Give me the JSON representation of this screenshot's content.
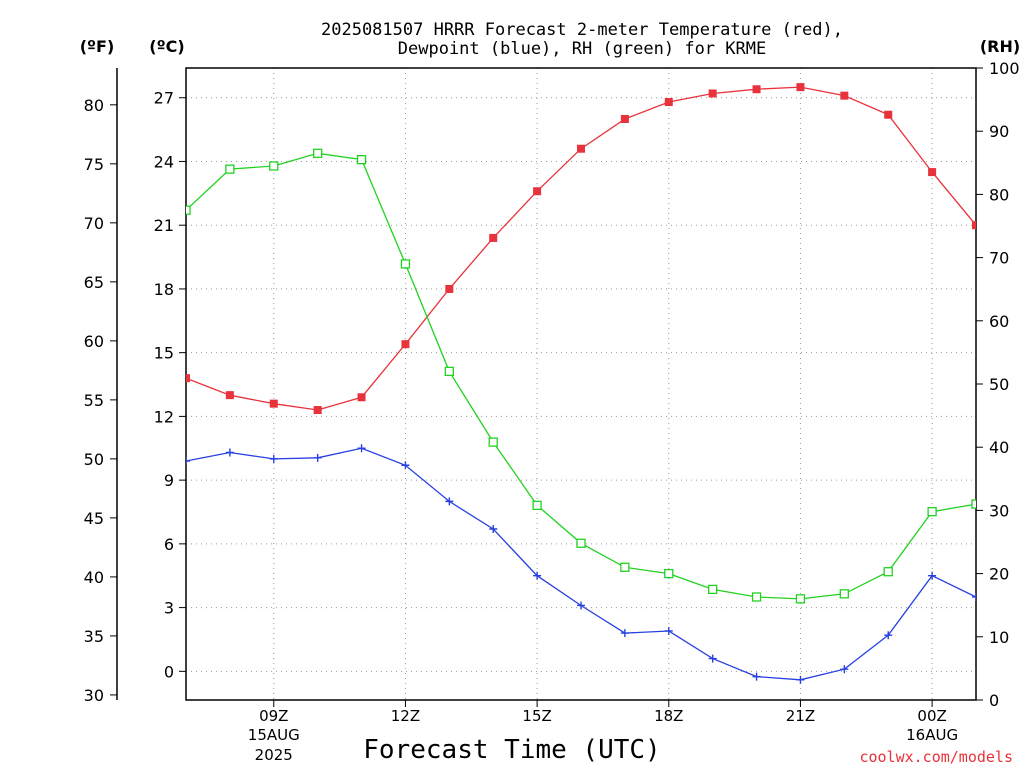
{
  "title_line1": "2025081507 HRRR Forecast 2-meter Temperature (red),",
  "title_line2": "Dewpoint (blue), RH (green) for KRME",
  "unit_f": "(ºF)",
  "unit_c": "(ºC)",
  "unit_rh": "(RH)",
  "xlabel": "Forecast Time (UTC)",
  "credit": "coolwx.com/models",
  "colors": {
    "temperature": "#e8323c",
    "dewpoint": "#2840e0",
    "rh": "#22d222",
    "axis": "#000000",
    "grid": "#9a9a9a"
  },
  "chart_data": {
    "type": "line",
    "x": [
      7,
      8,
      9,
      10,
      11,
      12,
      13,
      14,
      15,
      16,
      17,
      18,
      19,
      20,
      21,
      22,
      23,
      24,
      25
    ],
    "x_units": "hours UTC from 2025-08-15 00Z",
    "xlim": [
      7,
      25
    ],
    "x_ticks": [
      {
        "x": 9,
        "label": "09Z",
        "sub1": "15AUG",
        "sub2": "2025"
      },
      {
        "x": 12,
        "label": "12Z",
        "sub1": "",
        "sub2": ""
      },
      {
        "x": 15,
        "label": "15Z",
        "sub1": "",
        "sub2": ""
      },
      {
        "x": 18,
        "label": "18Z",
        "sub1": "",
        "sub2": ""
      },
      {
        "x": 21,
        "label": "21Z",
        "sub1": "",
        "sub2": ""
      },
      {
        "x": 24,
        "label": "00Z",
        "sub1": "16AUG",
        "sub2": ""
      }
    ],
    "ylim_c": [
      -1.35,
      28.4
    ],
    "ylim_rh": [
      0,
      100
    ],
    "y_ticks_c": [
      "0",
      "3",
      "6",
      "9",
      "12",
      "15",
      "18",
      "21",
      "24",
      "27"
    ],
    "y_ticks_f": [
      "30",
      "35",
      "40",
      "45",
      "50",
      "55",
      "60",
      "65",
      "70",
      "75",
      "80"
    ],
    "y_ticks_rh": [
      "0",
      "10",
      "20",
      "30",
      "40",
      "50",
      "60",
      "70",
      "80",
      "90",
      "100"
    ],
    "grid": true,
    "series": [
      {
        "name": "Temperature",
        "axis": "celsius",
        "marker": "filled-square",
        "color": "#e8323c",
        "values": [
          13.8,
          13.0,
          12.6,
          12.3,
          12.9,
          15.4,
          18.0,
          20.4,
          22.6,
          24.6,
          26.0,
          26.8,
          27.2,
          27.4,
          27.5,
          27.1,
          26.2,
          23.5,
          21.0
        ]
      },
      {
        "name": "Dewpoint",
        "axis": "celsius",
        "marker": "plus",
        "color": "#2840e0",
        "values": [
          9.9,
          10.3,
          10.0,
          10.05,
          10.5,
          9.7,
          8.0,
          6.7,
          4.5,
          3.1,
          1.8,
          1.9,
          0.6,
          -0.25,
          -0.4,
          0.1,
          1.7,
          4.5,
          3.5
        ]
      },
      {
        "name": "RH",
        "axis": "percent",
        "marker": "open-square",
        "color": "#22d222",
        "values": [
          77.5,
          84.0,
          84.5,
          86.5,
          85.5,
          69.0,
          52.0,
          40.8,
          30.8,
          24.8,
          21.0,
          20.0,
          17.5,
          16.3,
          16.0,
          16.8,
          20.3,
          29.8,
          31.0
        ]
      }
    ]
  }
}
